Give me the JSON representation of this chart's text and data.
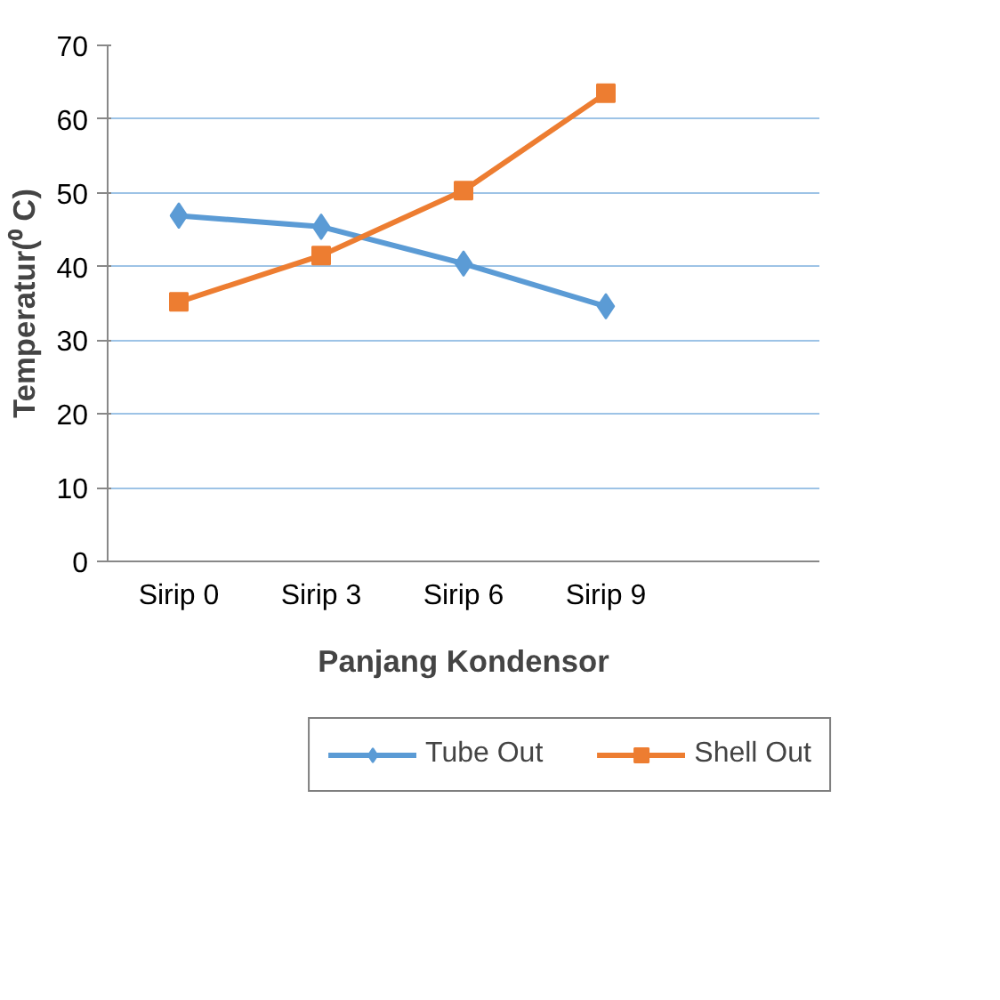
{
  "chart_data": {
    "type": "line",
    "xlabel": "Panjang Kondensor",
    "ylabel": "Temperatur(⁰ C)",
    "categories": [
      "Sirip 0",
      "Sirip 3",
      "Sirip 6",
      "Sirip 9",
      null
    ],
    "series": [
      {
        "name": "Tube Out",
        "color": "#5b9bd5",
        "marker": "diamond",
        "values": [
          46.9,
          45.4,
          40.4,
          34.6,
          null
        ]
      },
      {
        "name": "Shell Out",
        "color": "#ed7d31",
        "marker": "square",
        "values": [
          35.2,
          41.5,
          50.3,
          63.5,
          null
        ]
      }
    ],
    "ylim": [
      0,
      70
    ],
    "yticks": [
      0,
      10,
      20,
      30,
      40,
      50,
      60,
      70
    ],
    "grid": "y",
    "legend": "bottom",
    "line_style": "solid"
  }
}
